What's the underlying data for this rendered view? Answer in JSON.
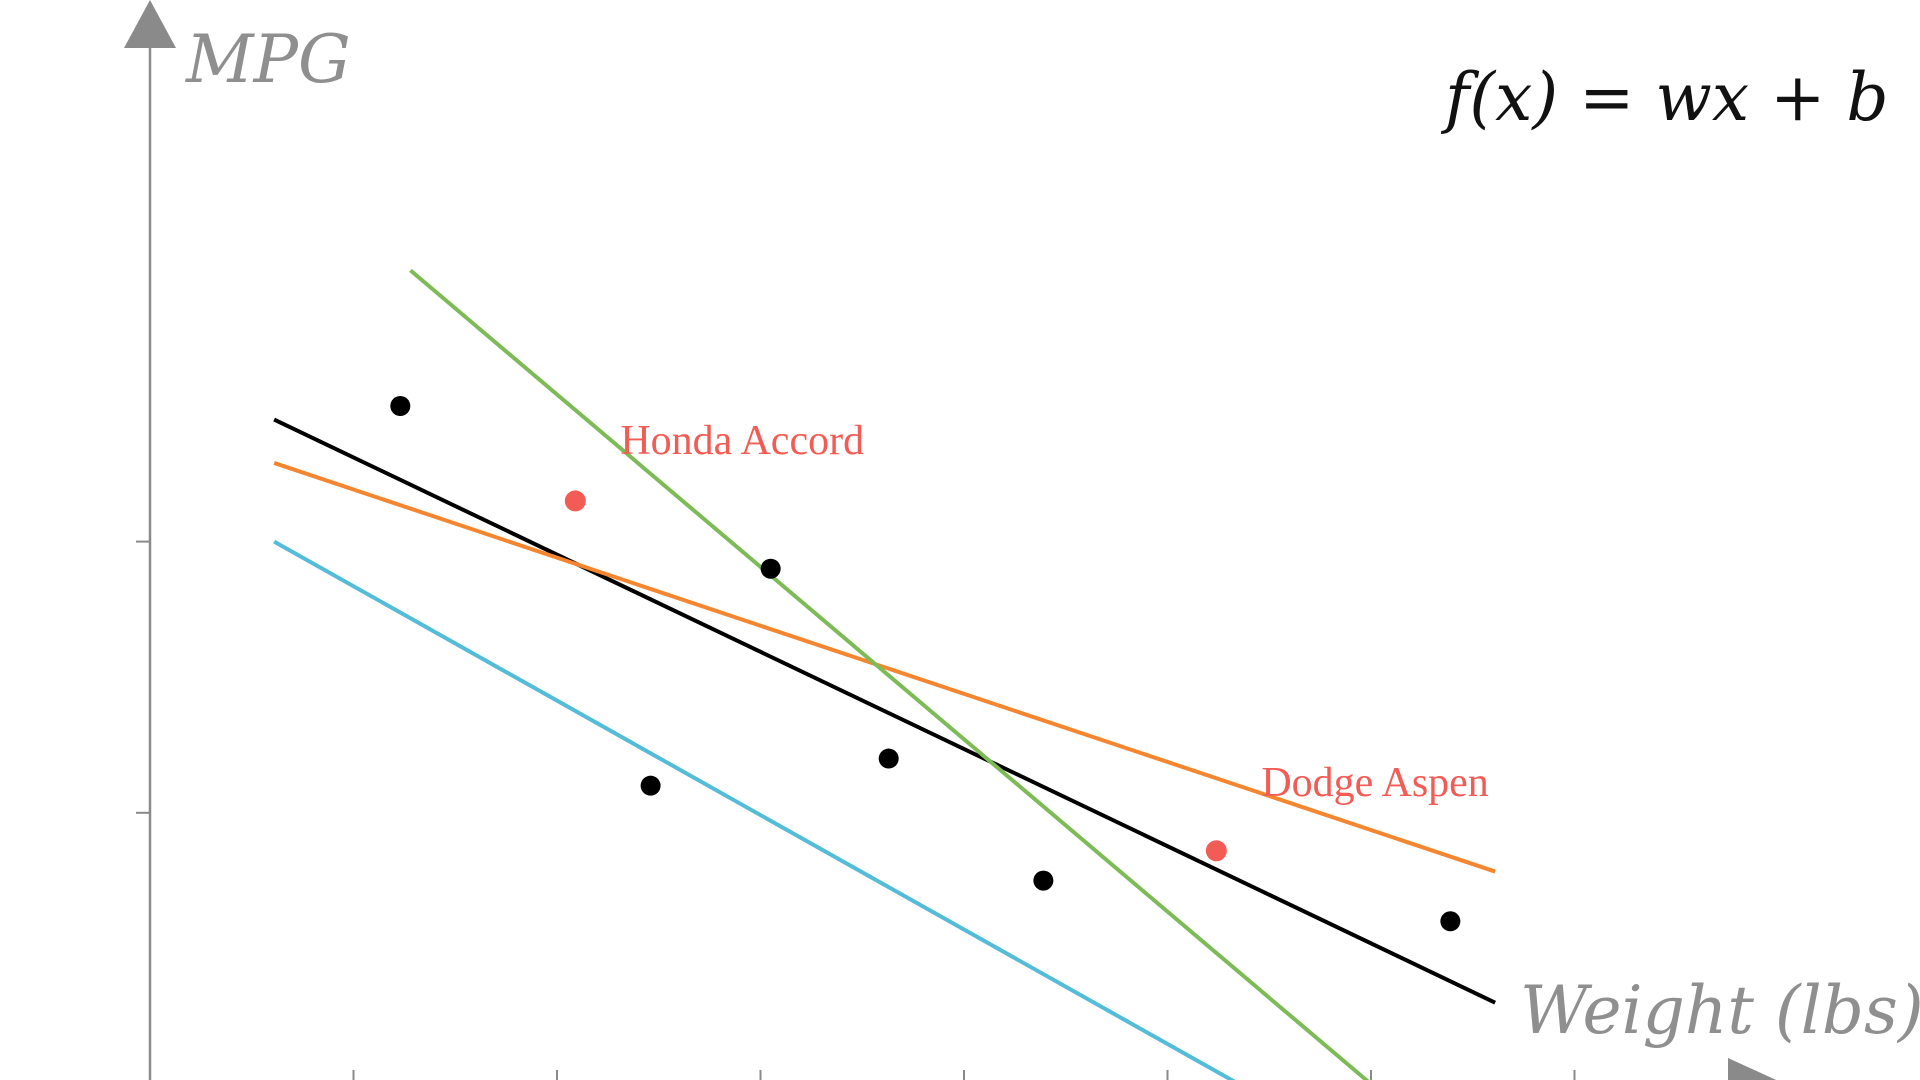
{
  "chart_data": {
    "type": "scatter",
    "title": "",
    "xlabel": "Weight (lbs)",
    "ylabel": "MPG",
    "formula": "f(x) = wx + b",
    "xlim": [
      0,
      8.6
    ],
    "ylim": [
      0,
      10
    ],
    "x_ticks": [
      1,
      2,
      3,
      4,
      5,
      6,
      7
    ],
    "y_ticks": [
      3.0,
      6.0
    ],
    "grid": false,
    "colors": {
      "axis": "#8a8a8a",
      "points": "#000000",
      "highlight": "#f25c54",
      "best_fit": "#000000",
      "line_orange": "#f5862f",
      "line_green": "#7dbb57",
      "line_blue": "#52bcd9"
    },
    "points": [
      {
        "x": 1.23,
        "y": 7.5
      },
      {
        "x": 2.46,
        "y": 3.3
      },
      {
        "x": 3.05,
        "y": 5.7
      },
      {
        "x": 3.63,
        "y": 3.6
      },
      {
        "x": 4.39,
        "y": 2.25
      },
      {
        "x": 6.39,
        "y": 1.8
      }
    ],
    "highlighted_points": [
      {
        "x": 2.09,
        "y": 6.45,
        "label": "Honda  Accord"
      },
      {
        "x": 5.24,
        "y": 2.58,
        "label": "Dodge  Aspen"
      }
    ],
    "lines": [
      {
        "color": "#000000",
        "x": [
          0.61,
          6.61
        ],
        "y": [
          7.35,
          0.9
        ]
      },
      {
        "color": "#f5862f",
        "x": [
          0.61,
          6.61
        ],
        "y": [
          6.87,
          2.35
        ]
      },
      {
        "color": "#7dbb57",
        "x": [
          1.28,
          6.0
        ],
        "y": [
          9.0,
          0.0
        ]
      },
      {
        "color": "#52bcd9",
        "x": [
          0.61,
          5.35
        ],
        "y": [
          6.0,
          0.0
        ]
      }
    ]
  }
}
